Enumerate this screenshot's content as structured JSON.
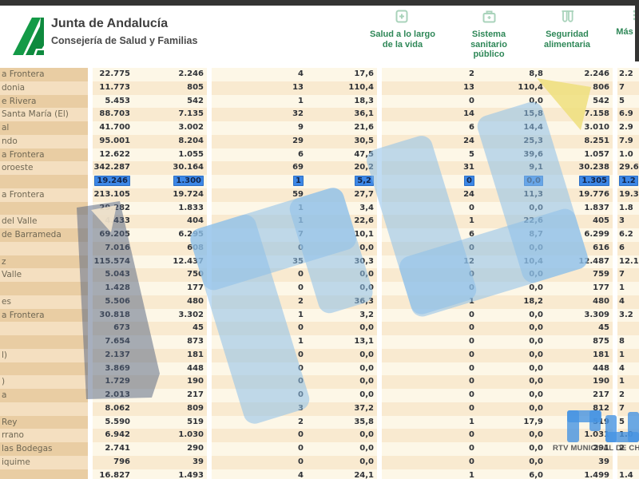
{
  "header": {
    "brand": {
      "title": "Junta de Andalucía",
      "subtitle": "Consejería de Salud y Familias"
    },
    "nav": [
      {
        "label": "Salud a lo largo\nde la vida",
        "icon": "health-book-icon"
      },
      {
        "label": "Sistema\nsanitario\npúblico",
        "icon": "medical-briefcase-icon"
      },
      {
        "label": "Seguridad\nalimentaria",
        "icon": "test-tubes-icon"
      },
      {
        "label": "Más",
        "icon": "more-grid-icon"
      }
    ]
  },
  "table": {
    "note": "Municipality name column is cut off at the left screen edge; last value column is cut off at the right edge",
    "rows": [
      {
        "name": "a Frontera",
        "values": [
          "22.775",
          "2.246",
          "4",
          "17,6",
          "2",
          "8,8",
          "2.246",
          "2.2"
        ]
      },
      {
        "name": "donia",
        "values": [
          "11.773",
          "805",
          "13",
          "110,4",
          "13",
          "110,4",
          "806",
          "7"
        ]
      },
      {
        "name": "e Rivera",
        "values": [
          "5.453",
          "542",
          "1",
          "18,3",
          "0",
          "0,0",
          "542",
          "5"
        ]
      },
      {
        "name": "Santa María (El)",
        "values": [
          "88.703",
          "7.135",
          "32",
          "36,1",
          "14",
          "15,8",
          "7.158",
          "6.9"
        ]
      },
      {
        "name": "al",
        "values": [
          "41.700",
          "3.002",
          "9",
          "21,6",
          "6",
          "14,4",
          "3.010",
          "2.9"
        ]
      },
      {
        "name": "ndo",
        "values": [
          "95.001",
          "8.204",
          "29",
          "30,5",
          "24",
          "25,3",
          "8.251",
          "7.9"
        ]
      },
      {
        "name": "a Frontera",
        "values": [
          "12.622",
          "1.055",
          "6",
          "47,5",
          "5",
          "39,6",
          "1.057",
          "1.0"
        ]
      },
      {
        "name": "oroeste",
        "values": [
          "342.287",
          "30.164",
          "69",
          "20,2",
          "31",
          "9,1",
          "30.238",
          "29.6"
        ]
      },
      {
        "name": "",
        "values": [
          "19.246",
          "1.300",
          "1",
          "5,2",
          "0",
          "0,0",
          "1.305",
          "1.2"
        ],
        "highlighted": true
      },
      {
        "name": "a Frontera",
        "values": [
          "213.105",
          "19.724",
          "59",
          "27,7",
          "24",
          "11,3",
          "19.776",
          "19.3"
        ]
      },
      {
        "name": "",
        "values": [
          "29.282",
          "1.833",
          "1",
          "3,4",
          "0",
          "0,0",
          "1.837",
          "1.8"
        ]
      },
      {
        "name": "del Valle",
        "values": [
          "4.433",
          "404",
          "1",
          "22,6",
          "1",
          "22,6",
          "405",
          "3"
        ]
      },
      {
        "name": "de Barrameda",
        "values": [
          "69.205",
          "6.295",
          "7",
          "10,1",
          "6",
          "8,7",
          "6.299",
          "6.2"
        ]
      },
      {
        "name": "",
        "values": [
          "7.016",
          "608",
          "0",
          "0,0",
          "0",
          "0,0",
          "616",
          "6"
        ]
      },
      {
        "name": "z",
        "values": [
          "115.574",
          "12.437",
          "35",
          "30,3",
          "12",
          "10,4",
          "12.487",
          "12.1"
        ]
      },
      {
        "name": "Valle",
        "values": [
          "5.043",
          "750",
          "0",
          "0,0",
          "0",
          "0,0",
          "759",
          "7"
        ]
      },
      {
        "name": "",
        "values": [
          "1.428",
          "177",
          "0",
          "0,0",
          "0",
          "0,0",
          "177",
          "1"
        ]
      },
      {
        "name": "es",
        "values": [
          "5.506",
          "480",
          "2",
          "36,3",
          "1",
          "18,2",
          "480",
          "4"
        ]
      },
      {
        "name": "a Frontera",
        "values": [
          "30.818",
          "3.302",
          "1",
          "3,2",
          "0",
          "0,0",
          "3.309",
          "3.2"
        ]
      },
      {
        "name": "",
        "values": [
          "673",
          "45",
          "0",
          "0,0",
          "0",
          "0,0",
          "45",
          ""
        ]
      },
      {
        "name": "",
        "values": [
          "7.654",
          "873",
          "1",
          "13,1",
          "0",
          "0,0",
          "875",
          "8"
        ]
      },
      {
        "name": "l)",
        "values": [
          "2.137",
          "181",
          "0",
          "0,0",
          "0",
          "0,0",
          "181",
          "1"
        ]
      },
      {
        "name": "",
        "values": [
          "3.869",
          "448",
          "0",
          "0,0",
          "0",
          "0,0",
          "448",
          "4"
        ]
      },
      {
        "name": ")",
        "values": [
          "1.729",
          "190",
          "0",
          "0,0",
          "0",
          "0,0",
          "190",
          "1"
        ]
      },
      {
        "name": "a",
        "values": [
          "2.013",
          "217",
          "0",
          "0,0",
          "0",
          "0,0",
          "217",
          "2"
        ]
      },
      {
        "name": "",
        "values": [
          "8.062",
          "809",
          "3",
          "37,2",
          "0",
          "0,0",
          "812",
          "7"
        ]
      },
      {
        "name": "Rey",
        "values": [
          "5.590",
          "519",
          "2",
          "35,8",
          "1",
          "17,9",
          "519",
          "5"
        ]
      },
      {
        "name": "rrano",
        "values": [
          "6.942",
          "1.030",
          "0",
          "0,0",
          "0",
          "0,0",
          "1.031",
          "1.0"
        ]
      },
      {
        "name": "las Bodegas",
        "values": [
          "2.741",
          "290",
          "0",
          "0,0",
          "0",
          "0,0",
          "291",
          "2"
        ]
      },
      {
        "name": "iquime",
        "values": [
          "796",
          "39",
          "0",
          "0,0",
          "0",
          "0,0",
          "39",
          ""
        ]
      }
    ],
    "partial_row": {
      "name": "",
      "values": [
        "16.827",
        "1.493",
        "4",
        "24,1",
        "1",
        "6,0",
        "1.499",
        "1.4"
      ]
    }
  },
  "watermark": {
    "small_logo_text": "RTV MUNICIPAL DE CH",
    "logo_glyphs": "ru"
  },
  "colors": {
    "accent_green": "#2e8757",
    "icon_green": "#a9d3bb",
    "logo_green": "#149a47",
    "row_cream": "#fdf7e7",
    "row_peach": "#f9ead0",
    "name_col_dark": "#e9cda3",
    "name_col_light": "#f4dfc0",
    "highlight_blue": "#3d87e6",
    "watermark_blue": "#8cc0ea",
    "watermark_slate": "#4f5f7e",
    "watermark_yellow": "#efdf7d"
  }
}
